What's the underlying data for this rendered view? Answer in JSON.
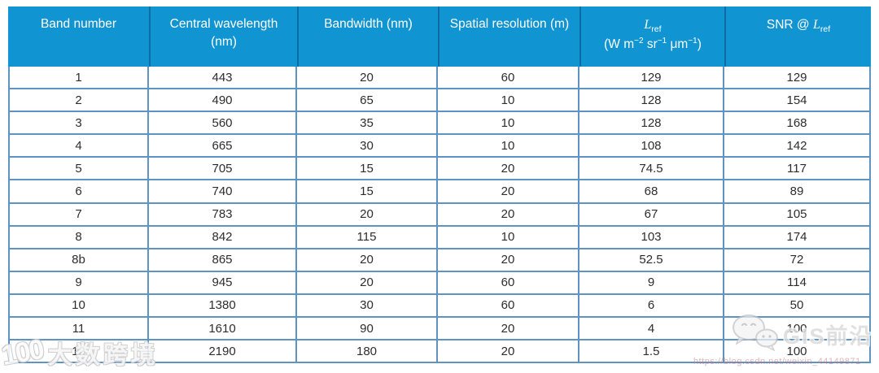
{
  "colors": {
    "header_bg": "#1094d2",
    "header_divider": "#0b6ca6",
    "header_text": "#ffffff",
    "body_border": "#5e94c3",
    "body_text": "#2d2d2d"
  },
  "table": {
    "headers": {
      "band": "Band number",
      "wavelength": "Central wavelength (nm)",
      "bandwidth": "Bandwidth (nm)",
      "resolution": "Spatial resolution (m)",
      "lref": {
        "symbol": "L",
        "symbol_sub": "ref",
        "u1": "(W m",
        "e1": "−2",
        "u2": " sr",
        "e2": "−1",
        "u3": " μm",
        "e3": "−1",
        "u4": ")"
      },
      "snr": {
        "prefix": "SNR @ ",
        "symbol": "L",
        "symbol_sub": "ref"
      }
    },
    "rows": [
      [
        "1",
        "443",
        "20",
        "60",
        "129",
        "129"
      ],
      [
        "2",
        "490",
        "65",
        "10",
        "128",
        "154"
      ],
      [
        "3",
        "560",
        "35",
        "10",
        "128",
        "168"
      ],
      [
        "4",
        "665",
        "30",
        "10",
        "108",
        "142"
      ],
      [
        "5",
        "705",
        "15",
        "20",
        "74.5",
        "117"
      ],
      [
        "6",
        "740",
        "15",
        "20",
        "68",
        "89"
      ],
      [
        "7",
        "783",
        "20",
        "20",
        "67",
        "105"
      ],
      [
        "8",
        "842",
        "115",
        "10",
        "103",
        "174"
      ],
      [
        "8b",
        "865",
        "20",
        "20",
        "52.5",
        "72"
      ],
      [
        "9",
        "945",
        "20",
        "60",
        "9",
        "114"
      ],
      [
        "10",
        "1380",
        "30",
        "60",
        "6",
        "50"
      ],
      [
        "11",
        "1610",
        "90",
        "20",
        "4",
        "100"
      ],
      [
        "12",
        "2190",
        "180",
        "20",
        "1.5",
        "100"
      ]
    ]
  },
  "watermarks": {
    "left_logo": "100",
    "left_text": "大数跨境",
    "right_text": "GIS前沿",
    "url_text": "https://blog.csdn.net/weixin_44149871"
  }
}
